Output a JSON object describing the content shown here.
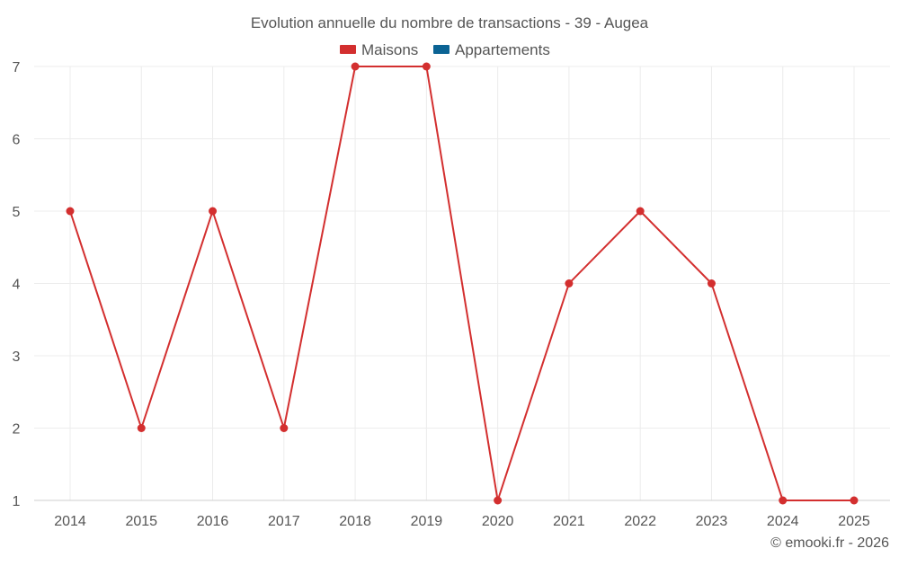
{
  "chart_data": {
    "type": "line",
    "title": "Evolution annuelle du nombre de transactions - 39 - Augea",
    "legend": {
      "placement": "top-center",
      "entries": [
        {
          "name": "Maisons",
          "color": "#d32f2f"
        },
        {
          "name": "Appartements",
          "color": "#0b6394"
        }
      ]
    },
    "categories": [
      "2014",
      "2015",
      "2016",
      "2017",
      "2018",
      "2019",
      "2020",
      "2021",
      "2022",
      "2023",
      "2024",
      "2025"
    ],
    "series": [
      {
        "name": "Maisons",
        "color": "#d32f2f",
        "values": [
          5,
          2,
          5,
          2,
          7,
          7,
          1,
          4,
          5,
          4,
          1,
          1
        ]
      }
    ],
    "ylim": [
      1,
      7
    ],
    "yticks": [
      1,
      2,
      3,
      4,
      5,
      6,
      7
    ],
    "grid": true,
    "xlabel": "",
    "ylabel": "",
    "credit": "© emooki.fr - 2026"
  }
}
